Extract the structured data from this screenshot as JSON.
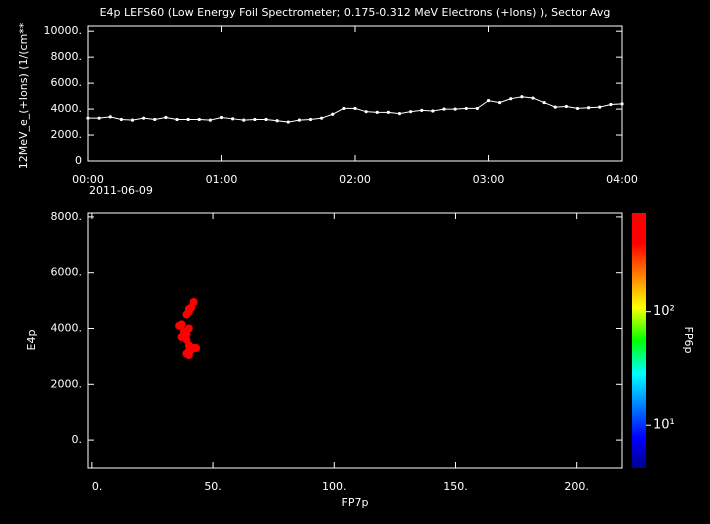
{
  "chart_data": [
    {
      "type": "line",
      "title": "E4p LEFS60 (Low Energy Foil Spectrometer; 0.175-0.312 MeV Electrons (+Ions) ), Sector Avg",
      "y_label": "12MeV_e_(+Ions) (1/(cm**",
      "date_label": "2011-06-09",
      "x": [
        0,
        5,
        10,
        15,
        20,
        25,
        30,
        35,
        40,
        45,
        50,
        55,
        60,
        65,
        70,
        75,
        80,
        85,
        90,
        95,
        100,
        105,
        110,
        115,
        120,
        125,
        130,
        135,
        140,
        145,
        150,
        155,
        160,
        165,
        170,
        175,
        180,
        185,
        190,
        195,
        200,
        205,
        210,
        215,
        220,
        225,
        230,
        235,
        240
      ],
      "values": [
        3300,
        3300,
        3400,
        3200,
        3150,
        3300,
        3200,
        3350,
        3200,
        3200,
        3200,
        3150,
        3350,
        3250,
        3150,
        3200,
        3200,
        3100,
        3000,
        3150,
        3200,
        3300,
        3600,
        4050,
        4050,
        3800,
        3750,
        3750,
        3650,
        3800,
        3900,
        3850,
        4000,
        4000,
        4050,
        4050,
        4650,
        4500,
        4800,
        4950,
        4850,
        4500,
        4150,
        4200,
        4050,
        4100,
        4150,
        4350,
        4400
      ],
      "color": "#ffffff",
      "xlim": [
        0,
        240
      ],
      "xticks": [
        {
          "value": 0,
          "label": "00:00"
        },
        {
          "value": 60,
          "label": "01:00"
        },
        {
          "value": 120,
          "label": "02:00"
        },
        {
          "value": 180,
          "label": "03:00"
        },
        {
          "value": 240,
          "label": "04:00"
        }
      ],
      "ylim": [
        0,
        10400
      ],
      "yticks": [
        0,
        {
          "value": 2000,
          "label": "2000."
        },
        {
          "value": 4000,
          "label": "4000."
        },
        {
          "value": 6000,
          "label": "6000."
        },
        {
          "value": 8000,
          "label": "8000."
        },
        {
          "value": 10000,
          "label": "10000."
        }
      ]
    },
    {
      "type": "scatter",
      "x_label": "FP7p",
      "y_label": "E4p",
      "x": [
        36,
        37,
        38,
        37,
        39,
        40,
        39,
        40,
        41,
        42,
        40,
        39,
        40,
        39,
        40,
        41,
        42,
        43,
        40,
        38
      ],
      "values": [
        4100,
        4150,
        3900,
        3700,
        3800,
        4000,
        4500,
        4700,
        4750,
        4950,
        4600,
        3600,
        3400,
        3100,
        3200,
        3250,
        3300,
        3300,
        3050,
        3750
      ],
      "color": "#ff0000",
      "xlim": [
        -1.6,
        218.7
      ],
      "xticks": [
        {
          "value": 0,
          "label": "0."
        },
        {
          "value": 50,
          "label": "50."
        },
        {
          "value": 100,
          "label": "100."
        },
        {
          "value": 150,
          "label": "150."
        },
        {
          "value": 200,
          "label": "200."
        }
      ],
      "ylim": [
        -1000,
        8140
      ],
      "yticks": [
        {
          "value": 0,
          "label": "0."
        },
        {
          "value": 2000,
          "label": "2000."
        },
        {
          "value": 4000,
          "label": "4000."
        },
        {
          "value": 6000,
          "label": "6000."
        },
        {
          "value": 8000,
          "label": "8000."
        }
      ],
      "colorbar": {
        "label": "FP6p",
        "log": true,
        "lim": [
          4.2,
          740
        ],
        "ticks": [
          {
            "value": 10,
            "label": "10¹"
          },
          {
            "value": 100,
            "label": "10²"
          }
        ]
      }
    }
  ]
}
